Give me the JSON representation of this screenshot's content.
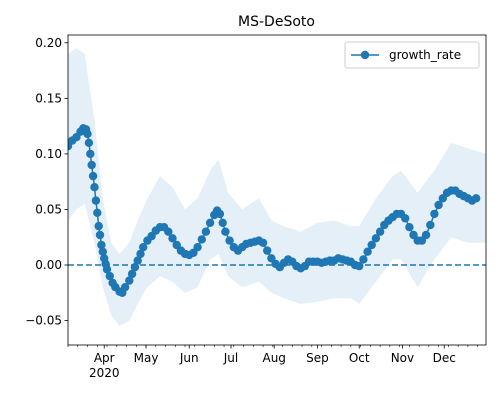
{
  "chart_data": {
    "type": "line",
    "title": "MS-DeSoto",
    "xlabel": "",
    "ylabel": "",
    "x_axis": {
      "type": "date",
      "range": [
        "2020-03-06",
        "2020-12-31"
      ],
      "major_ticks": [
        {
          "date": "2020-04-01",
          "label": "Apr",
          "sublabel": "2020"
        },
        {
          "date": "2020-05-01",
          "label": "May"
        },
        {
          "date": "2020-06-01",
          "label": "Jun"
        },
        {
          "date": "2020-07-01",
          "label": "Jul"
        },
        {
          "date": "2020-08-01",
          "label": "Aug"
        },
        {
          "date": "2020-09-01",
          "label": "Sep"
        },
        {
          "date": "2020-10-01",
          "label": "Oct"
        },
        {
          "date": "2020-11-01",
          "label": "Nov"
        },
        {
          "date": "2020-12-01",
          "label": "Dec"
        }
      ]
    },
    "y_axis": {
      "range": [
        -0.072,
        0.207
      ],
      "ticks": [
        {
          "value": -0.05,
          "label": "−0.05"
        },
        {
          "value": 0.0,
          "label": "0.00"
        },
        {
          "value": 0.05,
          "label": "0.05"
        },
        {
          "value": 0.1,
          "label": "0.10"
        },
        {
          "value": 0.15,
          "label": "0.15"
        },
        {
          "value": 0.2,
          "label": "0.20"
        }
      ]
    },
    "grid": false,
    "legend": {
      "position": "top-right",
      "entries": [
        "growth_rate"
      ]
    },
    "reference_line": {
      "y": 0.0,
      "style": "dashed",
      "color": "#1f77b4"
    },
    "colors": {
      "series": "#1f77b4",
      "band": "#dce9f5"
    },
    "series": [
      {
        "name": "growth_rate",
        "points": [
          [
            "2020-03-06",
            0.107
          ],
          [
            "2020-03-09",
            0.112
          ],
          [
            "2020-03-12",
            0.115
          ],
          [
            "2020-03-15",
            0.12
          ],
          [
            "2020-03-17",
            0.123
          ],
          [
            "2020-03-19",
            0.122
          ],
          [
            "2020-03-20",
            0.118
          ],
          [
            "2020-03-21",
            0.11
          ],
          [
            "2020-03-22",
            0.1
          ],
          [
            "2020-03-23",
            0.09
          ],
          [
            "2020-03-24",
            0.08
          ],
          [
            "2020-03-25",
            0.07
          ],
          [
            "2020-03-26",
            0.058
          ],
          [
            "2020-03-27",
            0.047
          ],
          [
            "2020-03-28",
            0.035
          ],
          [
            "2020-03-29",
            0.027
          ],
          [
            "2020-03-30",
            0.018
          ],
          [
            "2020-03-31",
            0.012
          ],
          [
            "2020-04-01",
            0.006
          ],
          [
            "2020-04-02",
            0.001
          ],
          [
            "2020-04-03",
            -0.004
          ],
          [
            "2020-04-05",
            -0.01
          ],
          [
            "2020-04-07",
            -0.016
          ],
          [
            "2020-04-09",
            -0.02
          ],
          [
            "2020-04-12",
            -0.024
          ],
          [
            "2020-04-14",
            -0.025
          ],
          [
            "2020-04-16",
            -0.02
          ],
          [
            "2020-04-19",
            -0.014
          ],
          [
            "2020-04-21",
            -0.008
          ],
          [
            "2020-04-23",
            -0.002
          ],
          [
            "2020-04-25",
            0.004
          ],
          [
            "2020-04-27",
            0.01
          ],
          [
            "2020-04-29",
            0.016
          ],
          [
            "2020-05-02",
            0.022
          ],
          [
            "2020-05-05",
            0.026
          ],
          [
            "2020-05-08",
            0.031
          ],
          [
            "2020-05-11",
            0.034
          ],
          [
            "2020-05-14",
            0.034
          ],
          [
            "2020-05-17",
            0.03
          ],
          [
            "2020-05-20",
            0.024
          ],
          [
            "2020-05-23",
            0.018
          ],
          [
            "2020-05-26",
            0.013
          ],
          [
            "2020-05-29",
            0.01
          ],
          [
            "2020-06-01",
            0.009
          ],
          [
            "2020-06-04",
            0.011
          ],
          [
            "2020-06-07",
            0.016
          ],
          [
            "2020-06-10",
            0.023
          ],
          [
            "2020-06-13",
            0.03
          ],
          [
            "2020-06-16",
            0.038
          ],
          [
            "2020-06-19",
            0.045
          ],
          [
            "2020-06-21",
            0.049
          ],
          [
            "2020-06-23",
            0.046
          ],
          [
            "2020-06-25",
            0.038
          ],
          [
            "2020-06-27",
            0.03
          ],
          [
            "2020-06-30",
            0.022
          ],
          [
            "2020-07-03",
            0.016
          ],
          [
            "2020-07-06",
            0.013
          ],
          [
            "2020-07-09",
            0.016
          ],
          [
            "2020-07-12",
            0.019
          ],
          [
            "2020-07-15",
            0.02
          ],
          [
            "2020-07-18",
            0.021
          ],
          [
            "2020-07-21",
            0.022
          ],
          [
            "2020-07-24",
            0.02
          ],
          [
            "2020-07-27",
            0.013
          ],
          [
            "2020-07-30",
            0.006
          ],
          [
            "2020-08-02",
            0.001
          ],
          [
            "2020-08-05",
            -0.002
          ],
          [
            "2020-08-08",
            0.002
          ],
          [
            "2020-08-11",
            0.005
          ],
          [
            "2020-08-14",
            0.003
          ],
          [
            "2020-08-17",
            -0.001
          ],
          [
            "2020-08-20",
            -0.003
          ],
          [
            "2020-08-23",
            -0.001
          ],
          [
            "2020-08-26",
            0.003
          ],
          [
            "2020-08-29",
            0.003
          ],
          [
            "2020-09-01",
            0.003
          ],
          [
            "2020-09-04",
            0.002
          ],
          [
            "2020-09-07",
            0.003
          ],
          [
            "2020-09-10",
            0.004
          ],
          [
            "2020-09-13",
            0.004
          ],
          [
            "2020-09-16",
            0.006
          ],
          [
            "2020-09-19",
            0.005
          ],
          [
            "2020-09-22",
            0.004
          ],
          [
            "2020-09-25",
            0.003
          ],
          [
            "2020-09-28",
            0.0
          ],
          [
            "2020-10-01",
            -0.001
          ],
          [
            "2020-10-04",
            0.005
          ],
          [
            "2020-10-07",
            0.012
          ],
          [
            "2020-10-10",
            0.018
          ],
          [
            "2020-10-13",
            0.024
          ],
          [
            "2020-10-16",
            0.03
          ],
          [
            "2020-10-19",
            0.036
          ],
          [
            "2020-10-22",
            0.04
          ],
          [
            "2020-10-25",
            0.043
          ],
          [
            "2020-10-28",
            0.046
          ],
          [
            "2020-10-31",
            0.046
          ],
          [
            "2020-11-03",
            0.042
          ],
          [
            "2020-11-06",
            0.034
          ],
          [
            "2020-11-09",
            0.027
          ],
          [
            "2020-11-12",
            0.022
          ],
          [
            "2020-11-15",
            0.022
          ],
          [
            "2020-11-18",
            0.027
          ],
          [
            "2020-11-21",
            0.036
          ],
          [
            "2020-11-24",
            0.046
          ],
          [
            "2020-11-27",
            0.054
          ],
          [
            "2020-11-30",
            0.06
          ],
          [
            "2020-12-03",
            0.065
          ],
          [
            "2020-12-06",
            0.067
          ],
          [
            "2020-12-09",
            0.067
          ],
          [
            "2020-12-12",
            0.064
          ],
          [
            "2020-12-15",
            0.062
          ],
          [
            "2020-12-18",
            0.06
          ],
          [
            "2020-12-21",
            0.058
          ],
          [
            "2020-12-24",
            0.06
          ]
        ]
      }
    ],
    "confidence_band": {
      "points": [
        [
          "2020-03-06",
          0.04,
          0.19
        ],
        [
          "2020-03-12",
          0.05,
          0.195
        ],
        [
          "2020-03-18",
          0.055,
          0.19
        ],
        [
          "2020-03-25",
          0.02,
          0.13
        ],
        [
          "2020-03-31",
          -0.02,
          0.06
        ],
        [
          "2020-04-06",
          -0.045,
          0.02
        ],
        [
          "2020-04-12",
          -0.055,
          0.01
        ],
        [
          "2020-04-19",
          -0.05,
          0.02
        ],
        [
          "2020-04-25",
          -0.035,
          0.04
        ],
        [
          "2020-05-02",
          -0.02,
          0.06
        ],
        [
          "2020-05-11",
          -0.01,
          0.08
        ],
        [
          "2020-05-20",
          -0.015,
          0.07
        ],
        [
          "2020-05-29",
          -0.025,
          0.05
        ],
        [
          "2020-06-07",
          -0.02,
          0.06
        ],
        [
          "2020-06-16",
          0.005,
          0.085
        ],
        [
          "2020-06-22",
          0.01,
          0.095
        ],
        [
          "2020-06-29",
          -0.01,
          0.065
        ],
        [
          "2020-07-09",
          -0.02,
          0.05
        ],
        [
          "2020-07-21",
          -0.015,
          0.06
        ],
        [
          "2020-07-30",
          -0.025,
          0.04
        ],
        [
          "2020-08-08",
          -0.03,
          0.035
        ],
        [
          "2020-08-20",
          -0.035,
          0.03
        ],
        [
          "2020-09-01",
          -0.033,
          0.038
        ],
        [
          "2020-09-13",
          -0.03,
          0.04
        ],
        [
          "2020-09-25",
          -0.03,
          0.035
        ],
        [
          "2020-10-01",
          -0.035,
          0.035
        ],
        [
          "2020-10-13",
          -0.015,
          0.06
        ],
        [
          "2020-10-25",
          0.005,
          0.08
        ],
        [
          "2020-10-31",
          0.005,
          0.085
        ],
        [
          "2020-11-12",
          -0.02,
          0.065
        ],
        [
          "2020-11-24",
          0.005,
          0.085
        ],
        [
          "2020-12-06",
          0.025,
          0.11
        ],
        [
          "2020-12-18",
          0.02,
          0.105
        ],
        [
          "2020-12-31",
          0.02,
          0.1
        ]
      ]
    }
  }
}
